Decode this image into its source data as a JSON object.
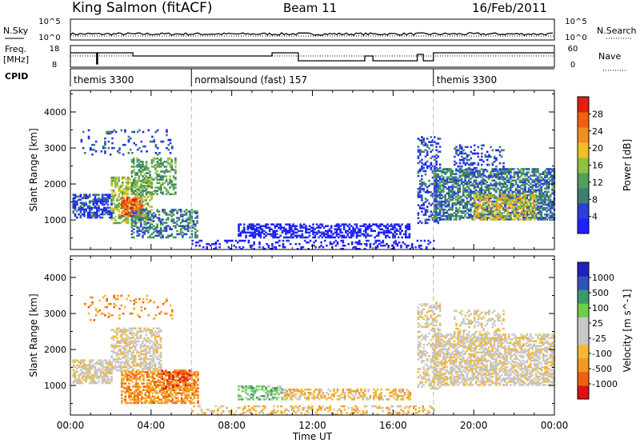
{
  "header": {
    "station": "King Salmon (fitACF)",
    "beam": "Beam 11",
    "date": "16/Feb/2011"
  },
  "left_labels": {
    "nsky": "N.Sky",
    "freq_line1": "Freq.",
    "freq_line2": "[MHz]",
    "cpid": "CPID"
  },
  "right_labels": {
    "nsearch": "N.Search",
    "nave": "Nave"
  },
  "noise_ticks": {
    "top": "10^5",
    "bottom": "10^0"
  },
  "freq_ticks": {
    "top": "18",
    "bottom": "8"
  },
  "nave_ticks": {
    "top": "60",
    "bottom": "0"
  },
  "cpid_segments": [
    {
      "label": "themis 3300",
      "start_hour": 0
    },
    {
      "label": "normalsound (fast) 157",
      "start_hour": 6
    },
    {
      "label": "themis 3300",
      "start_hour": 18
    }
  ],
  "colors": {
    "power": [
      "#2020ff",
      "#2a3fd9",
      "#3f7f6f",
      "#4fa05a",
      "#8fc23f",
      "#f0c020",
      "#f09020",
      "#f06010",
      "#e02010"
    ],
    "velocity": [
      "#e01010",
      "#f06010",
      "#f09a20",
      "#f4b830",
      "#c8c8c8",
      "#c8c8c8",
      "#6ad04a",
      "#3a9a6a",
      "#3050c0",
      "#2020c0"
    ]
  },
  "chart_data": [
    {
      "type": "heatmap",
      "name": "power",
      "ylabel": "Slant Range [km]",
      "colorbar_label": "Power [dB]",
      "colorbar_ticks": [
        "4",
        "8",
        "12",
        "16",
        "20",
        "24",
        "28"
      ],
      "ylim": [
        180,
        4600
      ],
      "yticks": [
        "1000",
        "2000",
        "3000",
        "4000"
      ],
      "xlim": [
        0,
        24
      ],
      "xticks": [
        "00:00",
        "04:00",
        "08:00",
        "12:00",
        "16:00",
        "20:00",
        "00:00"
      ],
      "xlabel": "",
      "regions": [
        {
          "t0": 0.1,
          "t1": 2.0,
          "r0": 1050,
          "r1": 1700,
          "density": 0.65,
          "level": 1
        },
        {
          "t0": 2.0,
          "t1": 4.0,
          "r0": 900,
          "r1": 2200,
          "density": 0.55,
          "level": 4
        },
        {
          "t0": 2.5,
          "t1": 3.5,
          "r0": 1100,
          "r1": 1600,
          "density": 0.7,
          "level": 7
        },
        {
          "t0": 3.0,
          "t1": 5.2,
          "r0": 1700,
          "r1": 2700,
          "density": 0.45,
          "level": 3
        },
        {
          "t0": 3.0,
          "t1": 6.3,
          "r0": 500,
          "r1": 1300,
          "density": 0.45,
          "level": 2
        },
        {
          "t0": 0.5,
          "t1": 5.0,
          "r0": 2800,
          "r1": 3500,
          "density": 0.12,
          "level": 1
        },
        {
          "t0": 8.3,
          "t1": 16.8,
          "r0": 500,
          "r1": 900,
          "density": 0.55,
          "level": 0
        },
        {
          "t0": 6.0,
          "t1": 18.0,
          "r0": 180,
          "r1": 420,
          "density": 0.25,
          "level": 0
        },
        {
          "t0": 17.2,
          "t1": 18.3,
          "r0": 900,
          "r1": 3300,
          "density": 0.35,
          "level": 1
        },
        {
          "t0": 18.0,
          "t1": 24.0,
          "r0": 1000,
          "r1": 2400,
          "density": 0.6,
          "level": 2
        },
        {
          "t0": 20.0,
          "t1": 23.0,
          "r0": 1000,
          "r1": 1700,
          "density": 0.45,
          "level": 5
        },
        {
          "t0": 19.0,
          "t1": 21.5,
          "r0": 2200,
          "r1": 3100,
          "density": 0.25,
          "level": 1
        }
      ]
    },
    {
      "type": "heatmap",
      "name": "velocity",
      "ylabel": "Slant Range [km]",
      "colorbar_label": "Velocity [m s^-1]",
      "colorbar_ticks": [
        "-1000",
        "-500",
        "-100",
        "-25",
        "25",
        "100",
        "500",
        "1000"
      ],
      "ylim": [
        180,
        4600
      ],
      "yticks": [
        "1000",
        "2000",
        "3000",
        "4000"
      ],
      "xlim": [
        0,
        24
      ],
      "xticks": [
        "00:00",
        "04:00",
        "08:00",
        "12:00",
        "16:00",
        "20:00",
        "00:00"
      ],
      "xlabel": "Time UT",
      "regions": [
        {
          "t0": 0.1,
          "t1": 2.0,
          "r0": 1050,
          "r1": 1700,
          "density": 0.65,
          "level": 4
        },
        {
          "t0": 2.0,
          "t1": 4.5,
          "r0": 1400,
          "r1": 2600,
          "density": 0.55,
          "level": 4
        },
        {
          "t0": 2.5,
          "t1": 6.3,
          "r0": 500,
          "r1": 1400,
          "density": 0.6,
          "level": 2
        },
        {
          "t0": 4.5,
          "t1": 6.0,
          "r0": 900,
          "r1": 1400,
          "density": 0.55,
          "level": 1
        },
        {
          "t0": 0.5,
          "t1": 5.0,
          "r0": 2800,
          "r1": 3500,
          "density": 0.12,
          "level": 2
        },
        {
          "t0": 8.3,
          "t1": 10.5,
          "r0": 600,
          "r1": 1000,
          "density": 0.5,
          "level": 6
        },
        {
          "t0": 10.5,
          "t1": 16.8,
          "r0": 600,
          "r1": 900,
          "density": 0.45,
          "level": 3
        },
        {
          "t0": 6.0,
          "t1": 18.0,
          "r0": 180,
          "r1": 450,
          "density": 0.3,
          "level": 3
        },
        {
          "t0": 17.2,
          "t1": 18.3,
          "r0": 900,
          "r1": 3300,
          "density": 0.35,
          "level": 4
        },
        {
          "t0": 18.0,
          "t1": 24.0,
          "r0": 1000,
          "r1": 2400,
          "density": 0.6,
          "level": 4
        },
        {
          "t0": 19.0,
          "t1": 21.5,
          "r0": 2200,
          "r1": 3100,
          "density": 0.25,
          "level": 4
        }
      ]
    }
  ]
}
